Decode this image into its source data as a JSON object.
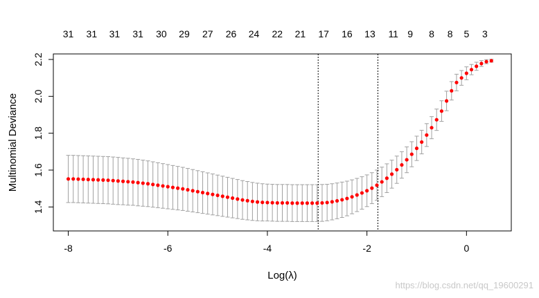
{
  "chart_data": {
    "type": "scatter",
    "xlabel": "Log(λ)",
    "ylabel": "Multinomial Deviance",
    "xlim": [
      -8.3,
      0.9
    ],
    "ylim": [
      1.27,
      2.23
    ],
    "x_ticks": [
      -8,
      -6,
      -4,
      -2,
      0
    ],
    "y_ticks": [
      1.4,
      1.6,
      1.8,
      2.0,
      2.2
    ],
    "x_tick_labels": [
      "-8",
      "-6",
      "-4",
      "-2",
      "0"
    ],
    "y_tick_labels": [
      "1.4",
      "1.6",
      "1.8",
      "2.0",
      "2.2"
    ],
    "top_axis": {
      "x": [
        -8.0,
        -7.53,
        -7.07,
        -6.6,
        -6.13,
        -5.67,
        -5.2,
        -4.73,
        -4.27,
        -3.8,
        -3.34,
        -2.87,
        -2.4,
        -1.94,
        -1.47,
        -1.13,
        -0.7,
        -0.33,
        0.0,
        0.37
      ],
      "labels": [
        "31",
        "31",
        "31",
        "31",
        "30",
        "29",
        "27",
        "26",
        "24",
        "22",
        "21",
        "17",
        "16",
        "13",
        "11",
        "9",
        "8",
        "8",
        "5",
        "3"
      ]
    },
    "vlines": [
      -2.98,
      -1.78
    ],
    "point_color": "#ff0000",
    "error_bar_color": "#a0a0a0",
    "series": [
      {
        "x": [
          -8.0,
          -7.9,
          -7.8,
          -7.7,
          -7.6,
          -7.5,
          -7.4,
          -7.3,
          -7.2,
          -7.1,
          -7.0,
          -6.9,
          -6.8,
          -6.7,
          -6.6,
          -6.5,
          -6.4,
          -6.3,
          -6.2,
          -6.1,
          -6.0,
          -5.9,
          -5.8,
          -5.7,
          -5.6,
          -5.5,
          -5.4,
          -5.3,
          -5.2,
          -5.1,
          -5.0,
          -4.9,
          -4.8,
          -4.7,
          -4.6,
          -4.5,
          -4.4,
          -4.3,
          -4.2,
          -4.1,
          -4.0,
          -3.9,
          -3.8,
          -3.7,
          -3.6,
          -3.5,
          -3.4,
          -3.3,
          -3.2,
          -3.1,
          -3.0,
          -2.9,
          -2.8,
          -2.7,
          -2.6,
          -2.5,
          -2.4,
          -2.3,
          -2.2,
          -2.1,
          -2.0,
          -1.9,
          -1.8,
          -1.7,
          -1.6,
          -1.5,
          -1.4,
          -1.3,
          -1.2,
          -1.1,
          -1.0,
          -0.9,
          -0.8,
          -0.7,
          -0.6,
          -0.5,
          -0.4,
          -0.3,
          -0.2,
          -0.1,
          0.0,
          0.1,
          0.2,
          0.3,
          0.4,
          0.5
        ],
        "y": [
          1.552,
          1.552,
          1.551,
          1.55,
          1.549,
          1.548,
          1.547,
          1.546,
          1.545,
          1.543,
          1.541,
          1.539,
          1.537,
          1.535,
          1.532,
          1.529,
          1.526,
          1.522,
          1.518,
          1.514,
          1.51,
          1.506,
          1.502,
          1.498,
          1.493,
          1.488,
          1.483,
          1.478,
          1.473,
          1.468,
          1.463,
          1.458,
          1.453,
          1.448,
          1.443,
          1.438,
          1.434,
          1.43,
          1.427,
          1.425,
          1.424,
          1.423,
          1.422,
          1.422,
          1.422,
          1.421,
          1.421,
          1.421,
          1.421,
          1.421,
          1.421,
          1.422,
          1.424,
          1.428,
          1.433,
          1.439,
          1.446,
          1.455,
          1.465,
          1.476,
          1.488,
          1.502,
          1.518,
          1.536,
          1.556,
          1.578,
          1.602,
          1.628,
          1.656,
          1.686,
          1.718,
          1.752,
          1.79,
          1.83,
          1.873,
          1.92,
          1.975,
          2.03,
          2.075,
          2.1,
          2.125,
          2.145,
          2.163,
          2.178,
          2.188,
          2.193
        ],
        "ci_halfwidth": [
          0.128,
          0.128,
          0.128,
          0.128,
          0.128,
          0.128,
          0.128,
          0.128,
          0.128,
          0.128,
          0.128,
          0.127,
          0.127,
          0.126,
          0.126,
          0.125,
          0.124,
          0.123,
          0.122,
          0.121,
          0.12,
          0.119,
          0.118,
          0.117,
          0.116,
          0.115,
          0.114,
          0.113,
          0.112,
          0.111,
          0.11,
          0.109,
          0.108,
          0.107,
          0.106,
          0.105,
          0.104,
          0.103,
          0.102,
          0.101,
          0.1,
          0.1,
          0.1,
          0.1,
          0.1,
          0.1,
          0.1,
          0.1,
          0.1,
          0.1,
          0.1,
          0.1,
          0.099,
          0.098,
          0.097,
          0.096,
          0.094,
          0.092,
          0.09,
          0.088,
          0.086,
          0.084,
          0.082,
          0.08,
          0.078,
          0.076,
          0.074,
          0.072,
          0.07,
          0.068,
          0.066,
          0.064,
          0.062,
          0.06,
          0.058,
          0.056,
          0.053,
          0.05,
          0.045,
          0.04,
          0.035,
          0.028,
          0.022,
          0.016,
          0.011,
          0.008
        ]
      }
    ]
  },
  "watermark": "https://blog.csdn.net/qq_19600291"
}
